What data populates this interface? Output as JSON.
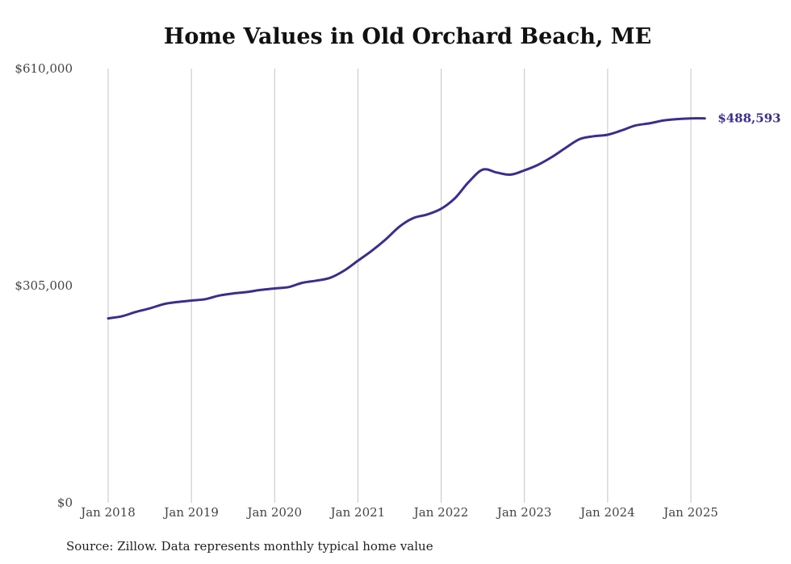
{
  "chart_data": {
    "type": "line",
    "title": "Home Values in Old Orchard Beach, ME",
    "xlabel": "",
    "ylabel": "",
    "ylim": [
      0,
      610000
    ],
    "y_ticks": [
      "$0",
      "$305,000",
      "$610,000"
    ],
    "y_tick_values": [
      0,
      305000,
      610000
    ],
    "x_ticks": [
      "Jan 2018",
      "Jan 2019",
      "Jan 2020",
      "Jan 2021",
      "Jan 2022",
      "Jan 2023",
      "Jan 2024",
      "Jan 2025"
    ],
    "x_tick_dates": [
      "2018-01",
      "2019-01",
      "2020-01",
      "2021-01",
      "2022-01",
      "2023-01",
      "2024-01",
      "2025-01"
    ],
    "grid": "vertical",
    "line_color": "#3b2e8c",
    "end_label": "$488,593",
    "series": [
      {
        "x": [
          "2018-01",
          "2018-03",
          "2018-05",
          "2018-07",
          "2018-09",
          "2018-11",
          "2019-01",
          "2019-03",
          "2019-05",
          "2019-07",
          "2019-09",
          "2019-11",
          "2020-01",
          "2020-03",
          "2020-05",
          "2020-07",
          "2020-09",
          "2020-11",
          "2021-01",
          "2021-03",
          "2021-05",
          "2021-07",
          "2021-09",
          "2021-11",
          "2022-01",
          "2022-03",
          "2022-05",
          "2022-07",
          "2022-09",
          "2022-11",
          "2023-01",
          "2023-03",
          "2023-05",
          "2023-07",
          "2023-09",
          "2023-11",
          "2024-01",
          "2024-03",
          "2024-05",
          "2024-07",
          "2024-09",
          "2024-11",
          "2025-01",
          "2025-03"
        ],
        "values": [
          259000,
          262000,
          268000,
          273000,
          279000,
          282000,
          284000,
          286000,
          291000,
          294000,
          296000,
          299000,
          301000,
          303000,
          309000,
          312000,
          316000,
          326000,
          340000,
          354000,
          370000,
          388000,
          400000,
          405000,
          413000,
          428000,
          451000,
          468000,
          464000,
          461000,
          467000,
          475000,
          486000,
          499000,
          511000,
          515000,
          517000,
          523000,
          530000,
          533000,
          537000,
          539000,
          540000,
          488593
        ]
      }
    ]
  },
  "footer": {
    "source": "Source: Zillow. Data represents monthly typical home value"
  }
}
